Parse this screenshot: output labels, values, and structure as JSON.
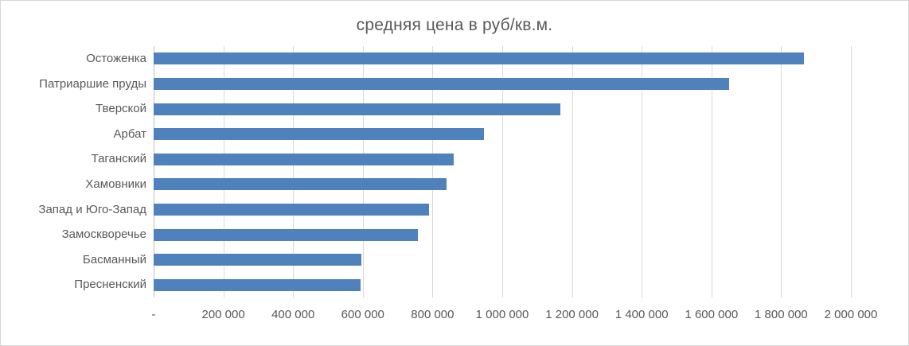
{
  "chart_data": {
    "type": "bar",
    "orientation": "horizontal",
    "title": "средняя цена в руб/кв.м.",
    "categories": [
      "Остоженка",
      "Патриаршие пруды",
      "Тверской",
      "Арбат",
      "Таганский",
      "Хамовники",
      "Запад и Юго-Запад",
      "Замоскворечье",
      "Басманный",
      "Пресненский"
    ],
    "values": [
      1866000,
      1650000,
      1166000,
      948000,
      861000,
      840000,
      791000,
      758000,
      597000,
      594000
    ],
    "xlabel": "",
    "ylabel": "",
    "xlim": [
      0,
      2000000
    ],
    "x_tick_step": 200000,
    "x_tick_labels": [
      "-",
      "200 000",
      "400 000",
      "600 000",
      "800 000",
      "1 000 000",
      "1 200 000",
      "1 400 000",
      "1 600 000",
      "1 800 000",
      "2 000 000"
    ],
    "grid": "vertical-only",
    "legend": "none",
    "bar_color": "#4f81bd",
    "text_color": "#595959",
    "gridline_color": "#d9d9d9"
  }
}
